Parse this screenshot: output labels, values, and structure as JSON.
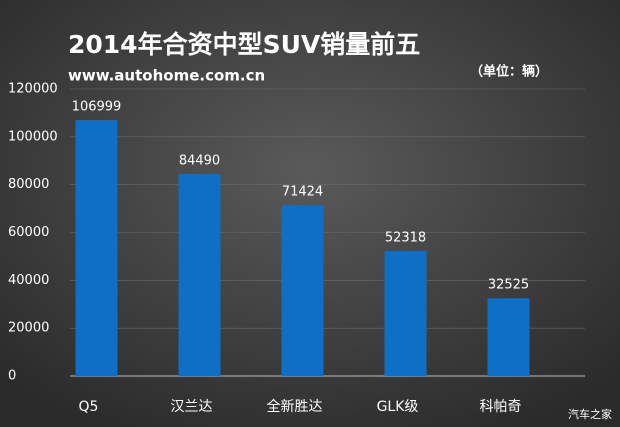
{
  "chart_data": {
    "type": "bar",
    "title": "2014年合资中型SUV销量前五",
    "subtitle": "www.autohome.com.cn",
    "unit": "（单位：辆）",
    "watermark": "汽车之家",
    "categories": [
      "Q5",
      "汉兰达",
      "全新胜达",
      "GLK级",
      "科帕奇"
    ],
    "values": [
      106999,
      84490,
      71424,
      52318,
      32525
    ],
    "color": "#0e6fc7",
    "ylim": [
      0,
      120000
    ],
    "yticks": [
      0,
      20000,
      40000,
      60000,
      80000,
      100000,
      120000
    ],
    "grid": true
  }
}
